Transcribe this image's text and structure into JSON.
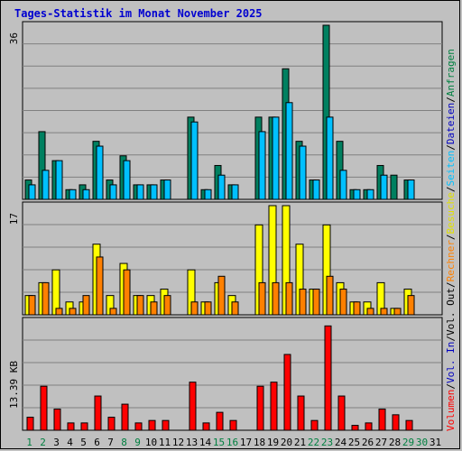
{
  "title": "Tages-Statistik im Monat November 2025",
  "panels": {
    "top_max": "36",
    "middle_max": "17",
    "bottom_max": "13.39 KB"
  },
  "legend": [
    {
      "text": "Anfragen",
      "color": "#008040"
    },
    {
      "text": "/",
      "color": "#000000"
    },
    {
      "text": "Dateien",
      "color": "#0000c0"
    },
    {
      "text": "/",
      "color": "#000000"
    },
    {
      "text": "Seiten",
      "color": "#00c0ff"
    },
    {
      "text": "/",
      "color": "#000000"
    },
    {
      "text": "Besuche",
      "color": "#e0e000"
    },
    {
      "text": "/",
      "color": "#000000"
    },
    {
      "text": "Rechner",
      "color": "#ff8000"
    },
    {
      "text": "/",
      "color": "#000000"
    },
    {
      "text": "Vol. Out",
      "color": "#000000"
    },
    {
      "text": "/",
      "color": "#000000"
    },
    {
      "text": "Vol. In",
      "color": "#0000c0"
    },
    {
      "text": "/",
      "color": "#000000"
    },
    {
      "text": "Volumen",
      "color": "#ff0000"
    }
  ],
  "colors": {
    "anfragen": "#008060",
    "dateien": "#00c0ff",
    "besuche": "#ffff00",
    "rechner": "#ff8000",
    "volumen": "#ff0000",
    "weekend_label": "#008040",
    "weekday_label": "#000000"
  },
  "chart_data": {
    "type": "bar",
    "title": "Tages-Statistik im Monat November 2025",
    "days": [
      "1",
      "2",
      "3",
      "4",
      "5",
      "6",
      "7",
      "8",
      "9",
      "10",
      "11",
      "12",
      "13",
      "14",
      "15",
      "16",
      "17",
      "18",
      "19",
      "20",
      "21",
      "22",
      "23",
      "24",
      "25",
      "26",
      "27",
      "28",
      "29",
      "30",
      "31"
    ],
    "weekend_days": [
      "1",
      "2",
      "8",
      "9",
      "15",
      "16",
      "22",
      "23",
      "29",
      "30"
    ],
    "panels": [
      {
        "name": "Anfragen/Dateien",
        "ymax": 36,
        "series": [
          {
            "name": "Anfragen",
            "values": [
              4,
              14,
              8,
              2,
              3,
              12,
              4,
              9,
              3,
              3,
              4,
              0,
              17,
              2,
              7,
              3,
              0,
              17,
              17,
              27,
              12,
              4,
              36,
              12,
              2,
              2,
              7,
              5,
              4,
              0,
              0
            ]
          },
          {
            "name": "Dateien",
            "values": [
              3,
              6,
              8,
              2,
              2,
              11,
              3,
              8,
              3,
              3,
              4,
              0,
              16,
              2,
              5,
              3,
              0,
              14,
              17,
              20,
              11,
              4,
              17,
              6,
              2,
              2,
              5,
              0,
              4,
              0,
              0
            ]
          }
        ]
      },
      {
        "name": "Seiten/Besuche/Rechner",
        "ymax": 17,
        "series": [
          {
            "name": "Seiten",
            "values": [
              0,
              0,
              0,
              0,
              0,
              0,
              0,
              0,
              0,
              0,
              0,
              0,
              0,
              0,
              0,
              0,
              0,
              0,
              0,
              0,
              0,
              0,
              0,
              0,
              0,
              0,
              0,
              0,
              0,
              0,
              0
            ]
          },
          {
            "name": "Besuche",
            "values": [
              3,
              5,
              7,
              2,
              2,
              11,
              3,
              8,
              3,
              3,
              4,
              0,
              7,
              2,
              5,
              3,
              0,
              14,
              17,
              17,
              11,
              4,
              14,
              5,
              2,
              2,
              5,
              1,
              4,
              0,
              0
            ]
          },
          {
            "name": "Rechner",
            "values": [
              3,
              5,
              1,
              1,
              3,
              9,
              1,
              7,
              3,
              2,
              3,
              0,
              2,
              2,
              6,
              2,
              0,
              5,
              5,
              5,
              4,
              4,
              6,
              4,
              2,
              1,
              1,
              1,
              3,
              0,
              0
            ]
          }
        ]
      },
      {
        "name": "Volumen",
        "ymax": 13.39,
        "unit": "KB",
        "series": [
          {
            "name": "Volumen",
            "values": [
              1.6,
              5.4,
              2.6,
              0.9,
              0.9,
              4.2,
              1.6,
              3.2,
              0.9,
              1.2,
              1.2,
              0,
              5.9,
              0.9,
              2.2,
              1.2,
              0,
              5.4,
              5.9,
              9.3,
              4.2,
              1.2,
              12.8,
              4.2,
              0.6,
              0.9,
              2.6,
              1.9,
              1.2,
              0,
              0
            ]
          }
        ]
      }
    ]
  }
}
